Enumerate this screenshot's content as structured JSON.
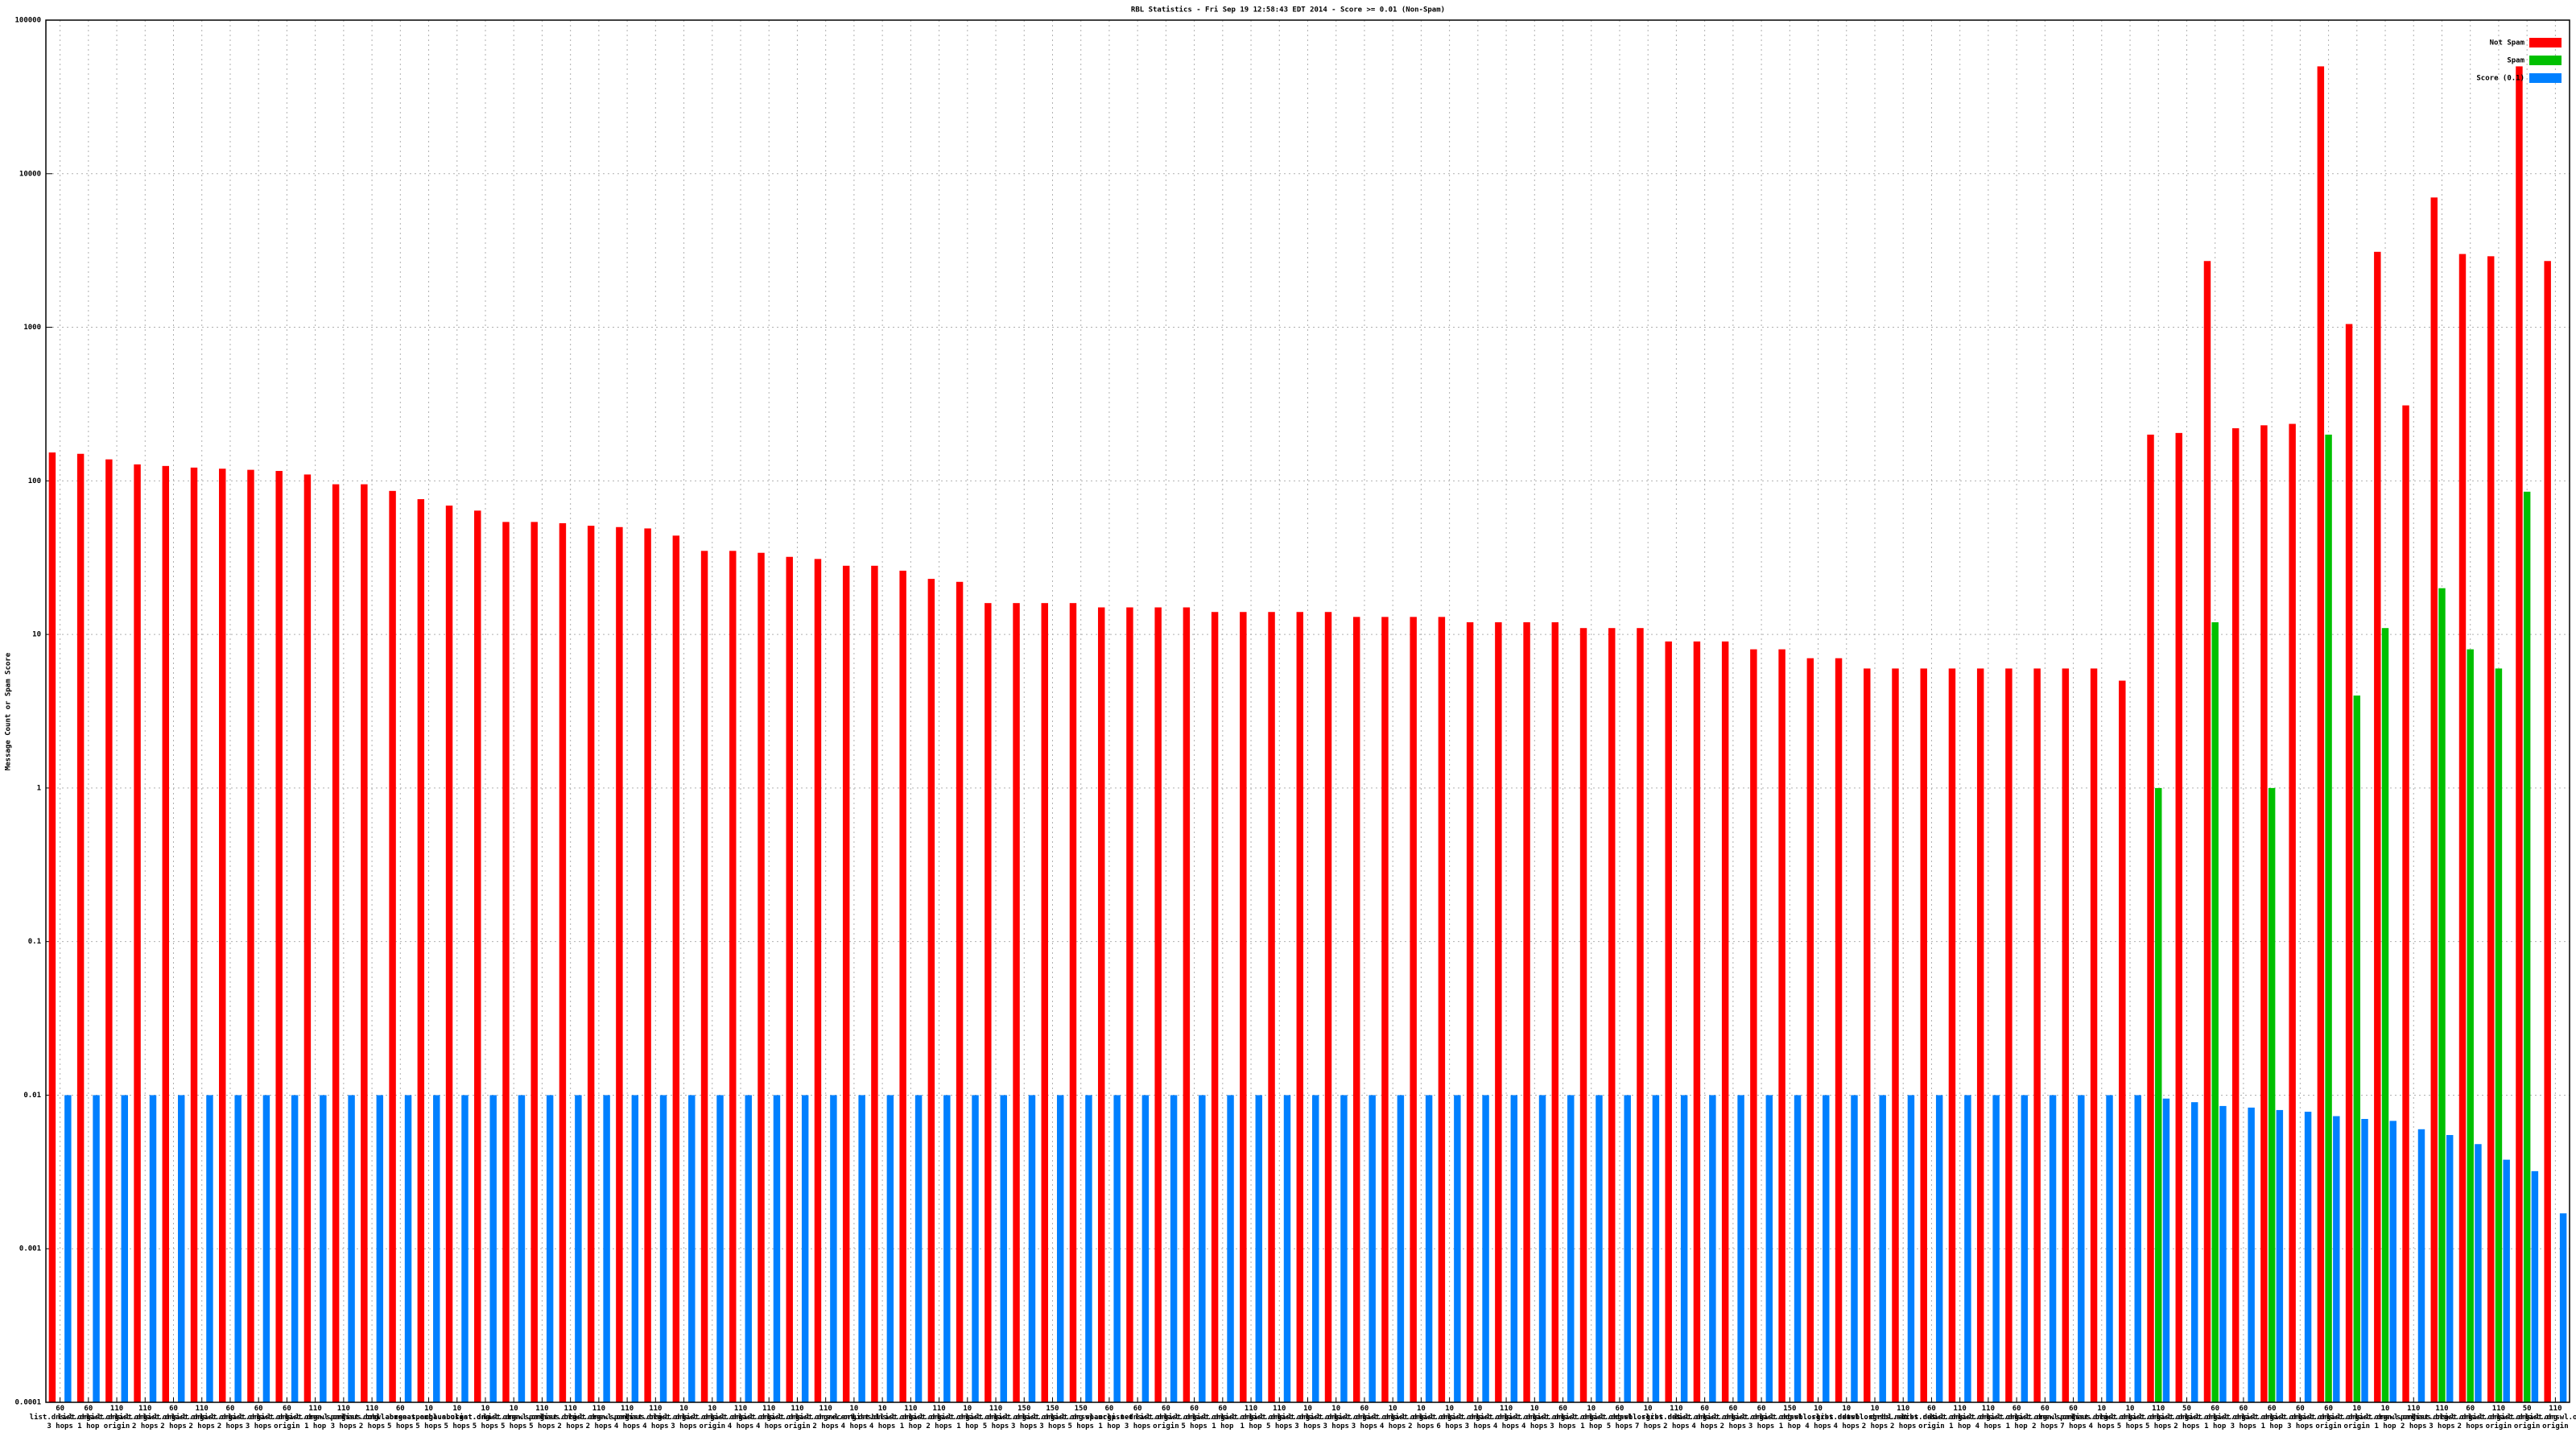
{
  "chart_data": {
    "type": "bar",
    "title": "RBL Statistics - Fri Sep 19 12:58:43 EDT 2014 - Score >= 0.01 (Non-Spam)",
    "y_label": "Message Count or Spam Score",
    "yscale": "log",
    "grid": true,
    "legend": "top-right",
    "ylim": [
      0.0001,
      100000
    ],
    "yticks": [
      0.0001,
      0.001,
      0.01,
      0.1,
      1,
      10,
      100,
      1000,
      10000,
      100000
    ],
    "categories": [
      [
        "60",
        "list.dnswl.org",
        "3 hops"
      ],
      [
        "60",
        "list.dnswl.org",
        "1 hop"
      ],
      [
        "110",
        "list.dnswl.org",
        "origin"
      ],
      [
        "110",
        "list.dnswl.org",
        "2 hops"
      ],
      [
        "60",
        "list.dnswl.org",
        "2 hops"
      ],
      [
        "110",
        "list.dnswl.org",
        "2 hops"
      ],
      [
        "60",
        "list.dnswl.org",
        "2 hops"
      ],
      [
        "60",
        "list.dnswl.org",
        "3 hops"
      ],
      [
        "60",
        "list.dnswl.org",
        "origin"
      ],
      [
        "110",
        "list.dnswl.org",
        "1 hop"
      ],
      [
        "110",
        "zen.spamhaus.org",
        "3 hops"
      ],
      [
        "110",
        "list.dnswl.org",
        "2 hops"
      ],
      [
        "60",
        "cbl.abuseat.org",
        "5 hops"
      ],
      [
        "10",
        "zen.spamhaus.org",
        "5 hops"
      ],
      [
        "10",
        "cbl.abuseat.org",
        "5 hops"
      ],
      [
        "10",
        "list.dnswl.org",
        "5 hops"
      ],
      [
        "10",
        "list.dnswl.org",
        "5 hops"
      ],
      [
        "110",
        "zen.spamhaus.org",
        "5 hops"
      ],
      [
        "110",
        "list.dnswl.org",
        "2 hops"
      ],
      [
        "110",
        "list.dnswl.org",
        "2 hops"
      ],
      [
        "110",
        "zen.spamhaus.org",
        "4 hops"
      ],
      [
        "110",
        "list.dnswl.org",
        "4 hops"
      ],
      [
        "10",
        "list.dnswl.org",
        "3 hops"
      ],
      [
        "10",
        "list.dnswl.org",
        "origin"
      ],
      [
        "110",
        "list.dnswl.org",
        "4 hops"
      ],
      [
        "110",
        "list.dnswl.org",
        "4 hops"
      ],
      [
        "110",
        "list.dnswl.org",
        "origin"
      ],
      [
        "110",
        "list.dnswl.org",
        "2 hops"
      ],
      [
        "10",
        "recent.dnsbl",
        "4 hops"
      ],
      [
        "10",
        "list.dnswl.org",
        "4 hops"
      ],
      [
        "110",
        "list.dnswl.org",
        "1 hop"
      ],
      [
        "110",
        "list.dnswl.org",
        "2 hops"
      ],
      [
        "10",
        "list.dnswl.org",
        "1 hop"
      ],
      [
        "110",
        "list.dnswl.org",
        "5 hops"
      ],
      [
        "150",
        "list.dnswl.org",
        "3 hops"
      ],
      [
        "150",
        "list.dnswl.org",
        "3 hops"
      ],
      [
        "150",
        "list.dnswl.org",
        "5 hops"
      ],
      [
        "60",
        "spamcop.net",
        "1 hop"
      ],
      [
        "60",
        "list.dnswl.org",
        "3 hops"
      ],
      [
        "60",
        "list.dnswl.org",
        "origin"
      ],
      [
        "60",
        "list.dnswl.org",
        "5 hops"
      ],
      [
        "60",
        "list.dnswl.org",
        "1 hop"
      ],
      [
        "110",
        "list.dnswl.org",
        "1 hop"
      ],
      [
        "110",
        "list.dnswl.org",
        "5 hops"
      ],
      [
        "10",
        "list.dnswl.org",
        "3 hops"
      ],
      [
        "10",
        "list.dnswl.org",
        "3 hops"
      ],
      [
        "60",
        "list.dnswl.org",
        "3 hops"
      ],
      [
        "10",
        "list.dnswl.org",
        "4 hops"
      ],
      [
        "10",
        "list.dnswl.org",
        "2 hops"
      ],
      [
        "10",
        "list.dnswl.org",
        "6 hops"
      ],
      [
        "10",
        "list.dnswl.org",
        "3 hops"
      ],
      [
        "110",
        "list.dnswl.org",
        "4 hops"
      ],
      [
        "10",
        "list.dnswl.org",
        "4 hops"
      ],
      [
        "60",
        "list.dnswl.org",
        "3 hops"
      ],
      [
        "10",
        "list.dnswl.org",
        "1 hop"
      ],
      [
        "60",
        "list.dnswl.org",
        "5 hops"
      ],
      [
        "10",
        "dnsbl.sorbs.net",
        "7 hops"
      ],
      [
        "110",
        "list.dnswl.org",
        "2 hops"
      ],
      [
        "60",
        "list.dnswl.org",
        "4 hops"
      ],
      [
        "60",
        "list.dnswl.org",
        "2 hops"
      ],
      [
        "60",
        "list.dnswl.org",
        "3 hops"
      ],
      [
        "150",
        "list.dnswl.org",
        "1 hop"
      ],
      [
        "10",
        "dnsbl.sorbs.net",
        "4 hops"
      ],
      [
        "10",
        "list.dnswl.org",
        "4 hops"
      ],
      [
        "10",
        "dnsbl.sorbs.net",
        "2 hops"
      ],
      [
        "110",
        "dnsbl.sorbs.net",
        "2 hops"
      ],
      [
        "60",
        "list.dnswl.org",
        "origin"
      ],
      [
        "110",
        "list.dnswl.org",
        "1 hop"
      ],
      [
        "110",
        "list.dnswl.org",
        "4 hops"
      ],
      [
        "60",
        "list.dnswl.org",
        "1 hop"
      ],
      [
        "60",
        "list.dnswl.org",
        "2 hops"
      ],
      [
        "60",
        "zen.spamhaus.org",
        "7 hops"
      ],
      [
        "10",
        "list.dnswl.org",
        "4 hops"
      ],
      [
        "10",
        "list.dnswl.org",
        "5 hops"
      ],
      [
        "110",
        "list.dnswl.org",
        "5 hops"
      ],
      [
        "50",
        "list.dnswl.org",
        "2 hops"
      ],
      [
        "60",
        "list.dnswl.org",
        "1 hop"
      ],
      [
        "60",
        "list.dnswl.org",
        "3 hops"
      ],
      [
        "60",
        "list.dnswl.org",
        "1 hop"
      ],
      [
        "60",
        "list.dnswl.org",
        "3 hops"
      ],
      [
        "60",
        "list.dnswl.org",
        "origin"
      ],
      [
        "10",
        "list.dnswl.org",
        "origin"
      ],
      [
        "10",
        "list.dnswl.org",
        "1 hop"
      ],
      [
        "110",
        "zen.spamhaus.org",
        "2 hops"
      ],
      [
        "110",
        "list.dnswl.org",
        "3 hops"
      ],
      [
        "60",
        "list.dnswl.org",
        "2 hops"
      ],
      [
        "110",
        "list.dnswl.org",
        "origin"
      ],
      [
        "50",
        "list.dnswl.org",
        "origin"
      ],
      [
        "110",
        "list.dnswl.org",
        "origin"
      ]
    ],
    "series": [
      {
        "name": "Not Spam",
        "color": "#ff0000",
        "values": [
          153,
          150,
          138,
          128,
          125,
          122,
          120,
          118,
          116,
          110,
          95,
          95,
          86,
          76,
          69,
          64,
          54,
          54,
          53,
          51,
          50,
          49,
          44,
          35,
          35,
          34,
          32,
          31,
          28,
          28,
          26,
          23,
          22,
          16,
          16,
          16,
          16,
          15,
          15,
          15,
          15,
          14,
          14,
          14,
          14,
          14,
          13,
          13,
          13,
          13,
          12,
          12,
          12,
          12,
          11,
          11,
          11,
          9,
          9,
          9,
          8,
          8,
          7,
          7,
          6,
          6,
          6,
          6,
          6,
          6,
          6,
          6,
          6,
          5,
          200,
          205,
          2700,
          220,
          230,
          235,
          50000,
          1050,
          3100,
          310,
          7000,
          3000,
          2900,
          50000,
          2700
        ]
      },
      {
        "name": "Spam",
        "color": "#00c000",
        "values": [
          null,
          null,
          null,
          null,
          null,
          null,
          null,
          null,
          null,
          null,
          null,
          null,
          null,
          null,
          null,
          null,
          null,
          null,
          null,
          null,
          null,
          null,
          null,
          null,
          null,
          null,
          null,
          null,
          null,
          null,
          null,
          null,
          null,
          null,
          null,
          null,
          null,
          null,
          null,
          null,
          null,
          null,
          null,
          null,
          null,
          null,
          null,
          null,
          null,
          null,
          null,
          null,
          null,
          null,
          null,
          null,
          null,
          null,
          null,
          null,
          null,
          null,
          null,
          null,
          null,
          null,
          null,
          null,
          null,
          null,
          null,
          null,
          null,
          null,
          1,
          null,
          12,
          null,
          1,
          null,
          200,
          4,
          11,
          null,
          20,
          8,
          6,
          85,
          null
        ]
      },
      {
        "name": "Score (0.1)",
        "color": "#0080ff",
        "values": [
          0.01,
          0.01,
          0.01,
          0.01,
          0.01,
          0.01,
          0.01,
          0.01,
          0.01,
          0.01,
          0.01,
          0.01,
          0.01,
          0.01,
          0.01,
          0.01,
          0.01,
          0.01,
          0.01,
          0.01,
          0.01,
          0.01,
          0.01,
          0.01,
          0.01,
          0.01,
          0.01,
          0.01,
          0.01,
          0.01,
          0.01,
          0.01,
          0.01,
          0.01,
          0.01,
          0.01,
          0.01,
          0.01,
          0.01,
          0.01,
          0.01,
          0.01,
          0.01,
          0.01,
          0.01,
          0.01,
          0.01,
          0.01,
          0.01,
          0.01,
          0.01,
          0.01,
          0.01,
          0.01,
          0.01,
          0.01,
          0.01,
          0.01,
          0.01,
          0.01,
          0.01,
          0.01,
          0.01,
          0.01,
          0.01,
          0.01,
          0.01,
          0.01,
          0.01,
          0.01,
          0.01,
          0.01,
          0.01,
          0.01,
          0.0095,
          0.009,
          0.0085,
          0.0083,
          0.008,
          0.0078,
          0.0073,
          0.007,
          0.0068,
          0.006,
          0.0055,
          0.0048,
          0.0038,
          0.0032,
          0.0017
        ]
      }
    ]
  }
}
